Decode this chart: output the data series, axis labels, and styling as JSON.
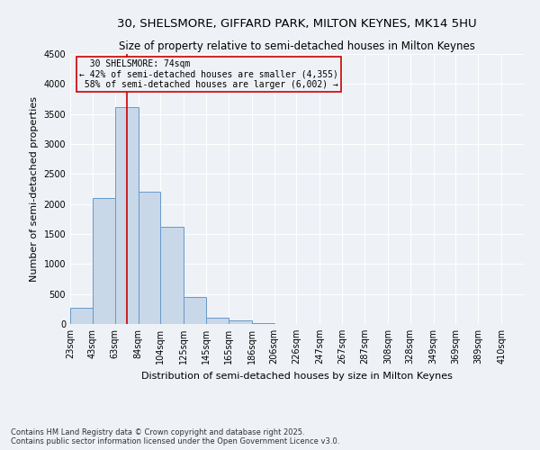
{
  "title1": "30, SHELSMORE, GIFFARD PARK, MILTON KEYNES, MK14 5HU",
  "title2": "Size of property relative to semi-detached houses in Milton Keynes",
  "xlabel": "Distribution of semi-detached houses by size in Milton Keynes",
  "ylabel": "Number of semi-detached properties",
  "footer1": "Contains HM Land Registry data © Crown copyright and database right 2025.",
  "footer2": "Contains public sector information licensed under the Open Government Licence v3.0.",
  "bar_edges": [
    23,
    43,
    63,
    84,
    104,
    125,
    145,
    165,
    186,
    206,
    226,
    247,
    267,
    287,
    308,
    328,
    349,
    369,
    389,
    410,
    430
  ],
  "bar_heights": [
    270,
    2100,
    3620,
    2200,
    1620,
    450,
    110,
    60,
    20,
    0,
    0,
    0,
    0,
    0,
    0,
    0,
    0,
    0,
    0,
    0
  ],
  "bar_color": "#c8d8e8",
  "bar_edge_color": "#6699cc",
  "subject_value": 74,
  "subject_label": "30 SHELSMORE: 74sqm",
  "smaller_pct": 42,
  "smaller_n": 4355,
  "larger_pct": 58,
  "larger_n": 6002,
  "vline_color": "#cc0000",
  "annotation_box_color": "#cc0000",
  "ylim": [
    0,
    4500
  ],
  "yticks": [
    0,
    500,
    1000,
    1500,
    2000,
    2500,
    3000,
    3500,
    4000,
    4500
  ],
  "bg_color": "#eef2f7",
  "grid_color": "#ffffff",
  "title1_fontsize": 9.5,
  "title2_fontsize": 8.5,
  "axis_label_fontsize": 8,
  "tick_fontsize": 7,
  "annotation_fontsize": 7,
  "footer_fontsize": 6
}
